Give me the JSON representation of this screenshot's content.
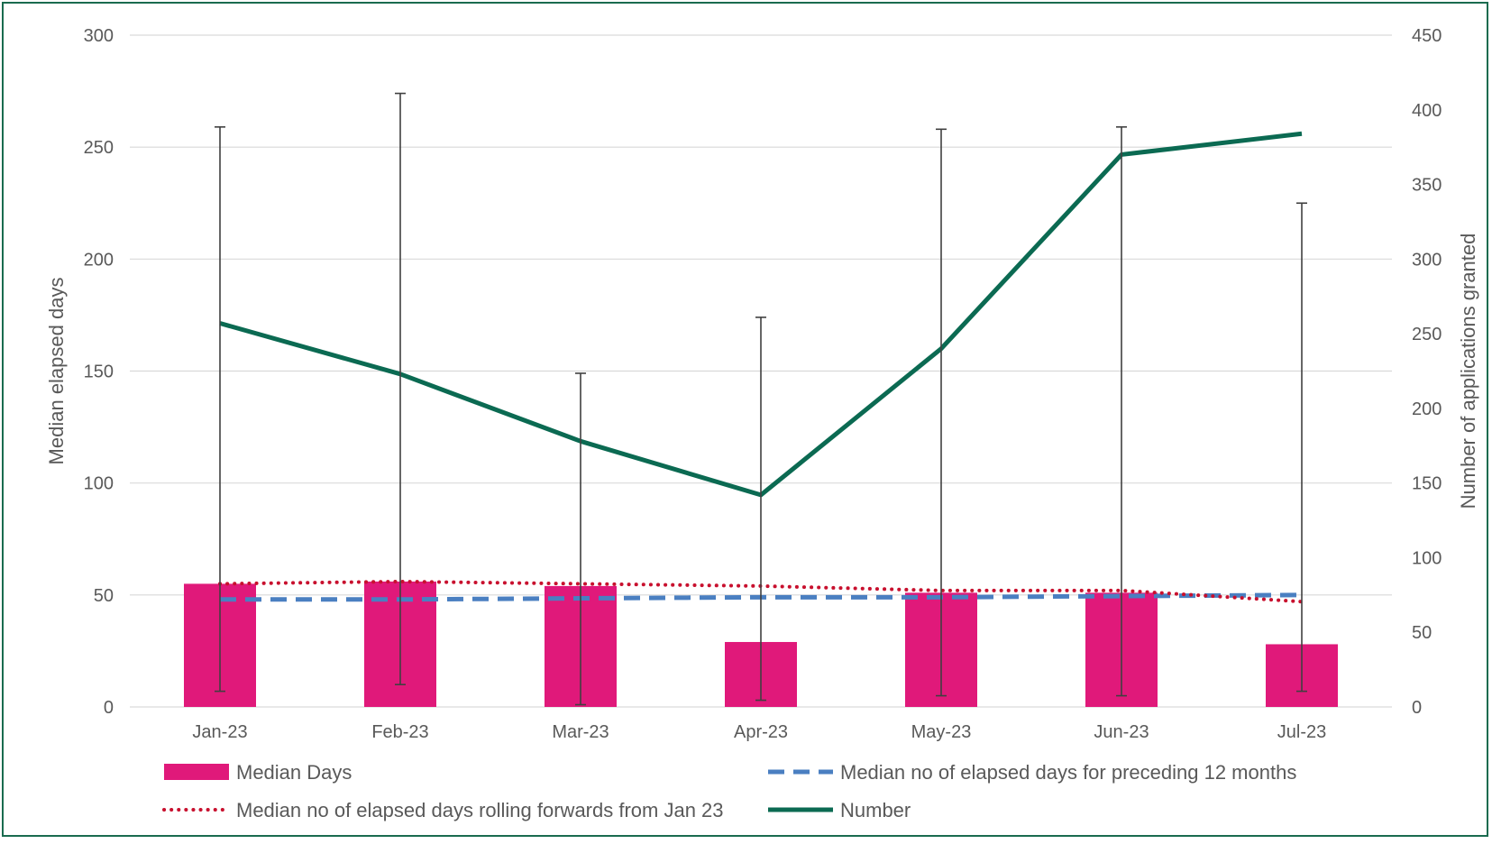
{
  "chart_data": {
    "type": "bar",
    "categories": [
      "Jan-23",
      "Feb-23",
      "Mar-23",
      "Apr-23",
      "May-23",
      "Jun-23",
      "Jul-23"
    ],
    "y_left": {
      "label": "Median elapsed days",
      "min": 0,
      "max": 300,
      "ticks": [
        0,
        50,
        100,
        150,
        200,
        250,
        300
      ]
    },
    "y_right": {
      "label": "Number of applications granted",
      "min": 0,
      "max": 450,
      "ticks": [
        0,
        50,
        100,
        150,
        200,
        250,
        300,
        350,
        400,
        450
      ]
    },
    "grid": true,
    "legend_position": "bottom",
    "series": [
      {
        "name": "Median Days",
        "type": "bar",
        "axis": "left",
        "color": "#e0197a",
        "values": [
          55,
          56,
          54,
          29,
          51,
          51,
          28
        ]
      },
      {
        "name": "Median no of elapsed days for preceding 12 months",
        "type": "line",
        "style": "dashed",
        "axis": "left",
        "color": "#4a7fc1",
        "values": [
          48,
          48,
          48.5,
          49,
          49,
          49.5,
          50
        ]
      },
      {
        "name": "Median no of elapsed days rolling forwards from Jan 23",
        "type": "line",
        "style": "dotted",
        "axis": "left",
        "color": "#c8102e",
        "values": [
          55,
          56,
          55,
          54,
          52,
          52,
          47
        ]
      },
      {
        "name": "Number",
        "type": "line",
        "style": "solid",
        "axis": "right",
        "color": "#0b6a52",
        "values": [
          257,
          223,
          178,
          142,
          240,
          370,
          384
        ]
      }
    ],
    "error_bars": {
      "axis": "left",
      "color": "#404040",
      "low": [
        7,
        10,
        1,
        3,
        5,
        5,
        7
      ],
      "high": [
        259,
        274,
        149,
        174,
        258,
        259,
        225
      ]
    },
    "legend": [
      "Median Days",
      "Median no of elapsed days for preceding 12 months",
      "Median no of elapsed days rolling forwards from Jan 23",
      "Number"
    ]
  }
}
